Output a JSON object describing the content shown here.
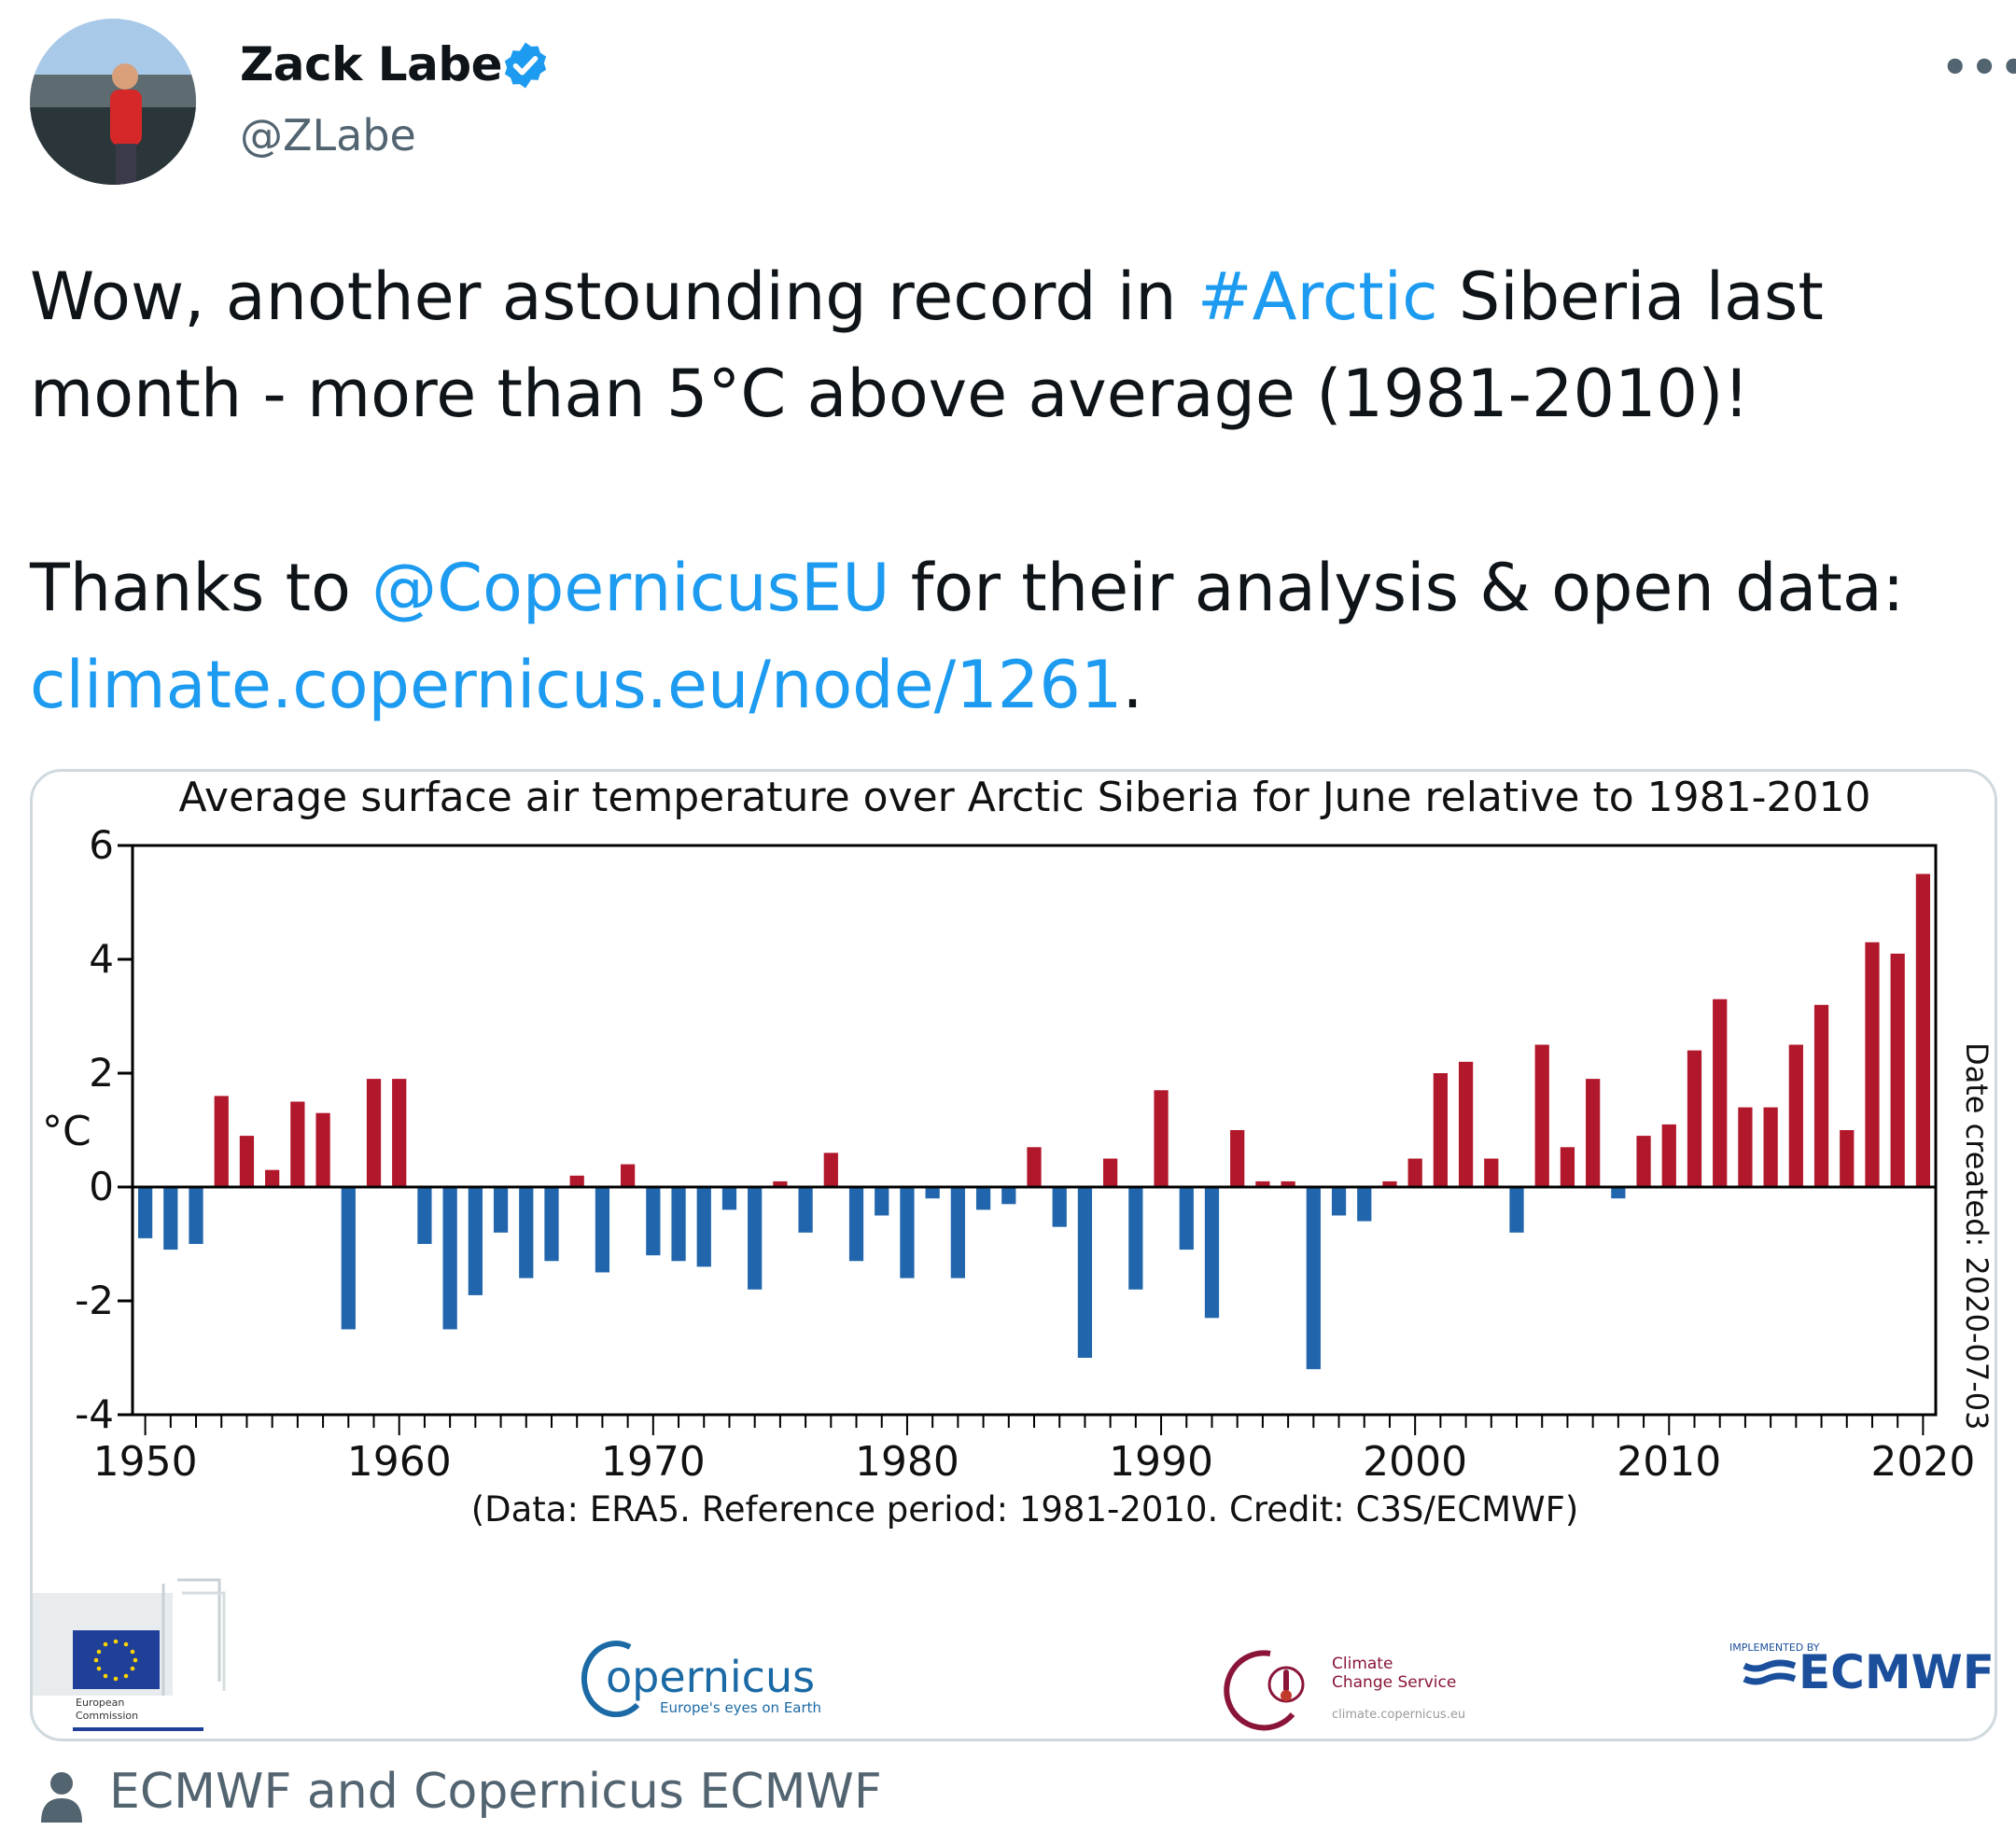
{
  "tweet": {
    "author_name": "Zack Labe",
    "handle": "@ZLabe",
    "more_label": "•••",
    "line1_pre": "Wow, another astounding record in ",
    "line1_hashtag": "#Arctic",
    "line1_post": " Siberia last month - more than 5°C above average (1981-2010)!",
    "line2_pre": "Thanks to ",
    "line2_mention": "@CopernicusEU",
    "line2_mid": " for their analysis & open data: ",
    "line2_link": "climate.copernicus.eu/node/1261",
    "line2_post": "."
  },
  "image_source": {
    "label": "ECMWF and Copernicus ECMWF"
  },
  "colors": {
    "link": "#1d9bf0",
    "positive_bar": "#b2182b",
    "negative_bar": "#2166ac",
    "verified": "#1d9bf0"
  },
  "logos": {
    "ec_line1": "European",
    "ec_line2": "Commission",
    "copernicus_name": "opernicus",
    "copernicus_tagline": "Europe's eyes on Earth",
    "c3s_line1": "Climate",
    "c3s_line2": "Change Service",
    "c3s_url": "climate.copernicus.eu",
    "ecmwf_small": "IMPLEMENTED BY",
    "ecmwf_name": "ECMWF"
  },
  "chart_data": {
    "type": "bar",
    "title": "Average surface air temperature over Arctic Siberia for June relative to 1981-2010",
    "ylabel": "°C",
    "ylim": [
      -4,
      6
    ],
    "yticks": [
      -4,
      -2,
      0,
      2,
      4,
      6
    ],
    "xticks": [
      1950,
      1960,
      1970,
      1980,
      1990,
      2000,
      2010,
      2020
    ],
    "caption": "(Data: ERA5.  Reference period: 1981-2010.  Credit: C3S/ECMWF)",
    "side_label": "Date created: 2020-07-03",
    "x": [
      1950,
      1951,
      1952,
      1953,
      1954,
      1955,
      1956,
      1957,
      1958,
      1959,
      1960,
      1961,
      1962,
      1963,
      1964,
      1965,
      1966,
      1967,
      1968,
      1969,
      1970,
      1971,
      1972,
      1973,
      1974,
      1975,
      1976,
      1977,
      1978,
      1979,
      1980,
      1981,
      1982,
      1983,
      1984,
      1985,
      1986,
      1987,
      1988,
      1989,
      1990,
      1991,
      1992,
      1993,
      1994,
      1995,
      1996,
      1997,
      1998,
      1999,
      2000,
      2001,
      2002,
      2003,
      2004,
      2005,
      2006,
      2007,
      2008,
      2009,
      2010,
      2011,
      2012,
      2013,
      2014,
      2015,
      2016,
      2017,
      2018,
      2019,
      2020
    ],
    "values": [
      -0.9,
      -1.1,
      -1.0,
      1.6,
      0.9,
      0.3,
      1.5,
      1.3,
      -2.5,
      1.9,
      1.9,
      -1.0,
      -2.5,
      -1.9,
      -0.8,
      -1.6,
      -1.3,
      0.2,
      -1.5,
      0.4,
      -1.2,
      -1.3,
      -1.4,
      -0.4,
      -1.8,
      0.1,
      -0.8,
      0.6,
      -1.3,
      -0.5,
      -1.6,
      -0.2,
      -1.6,
      -0.4,
      -0.3,
      0.7,
      -0.7,
      -3.0,
      0.5,
      -1.8,
      1.7,
      -1.1,
      -2.3,
      1.0,
      0.1,
      0.1,
      -3.2,
      -0.5,
      -0.6,
      0.1,
      0.5,
      2.0,
      2.2,
      0.5,
      -0.8,
      2.5,
      0.7,
      1.9,
      -0.2,
      0.9,
      1.1,
      2.4,
      3.3,
      1.4,
      1.4,
      2.5,
      3.2,
      1.0,
      4.3,
      4.1,
      5.5
    ]
  }
}
